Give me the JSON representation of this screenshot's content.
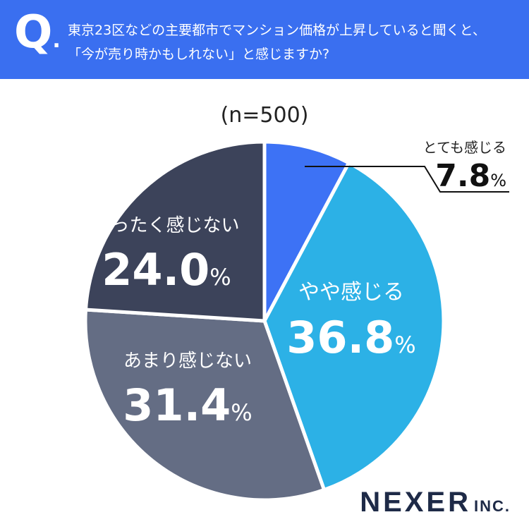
{
  "header": {
    "q_mark": "Q",
    "q_dot": ".",
    "line1": "東京23区などの主要都市でマンション価格が上昇していると聞くと、",
    "line2": "「今が売り時かもしれない」と感じますか?"
  },
  "sample_size": "(n=500)",
  "brand": {
    "name": "NEXER",
    "suffix": "INC."
  },
  "chart_data": {
    "type": "pie",
    "title": "",
    "unit": "%",
    "start_angle_deg": 0,
    "direction": "clockwise",
    "slices": [
      {
        "label": "とても感じる",
        "value": 7.8,
        "display": "7.8",
        "color": "#3d72f5",
        "label_placement": "outside-callout"
      },
      {
        "label": "やや感じる",
        "value": 36.8,
        "display": "36.8",
        "color": "#2cb1e6",
        "label_placement": "inside"
      },
      {
        "label": "あまり感じない",
        "value": 31.4,
        "display": "31.4",
        "color": "#646d84",
        "label_placement": "inside"
      },
      {
        "label": "まったく感じない",
        "value": 24.0,
        "display": "24.0",
        "color": "#3c435a",
        "label_placement": "inside"
      }
    ]
  }
}
